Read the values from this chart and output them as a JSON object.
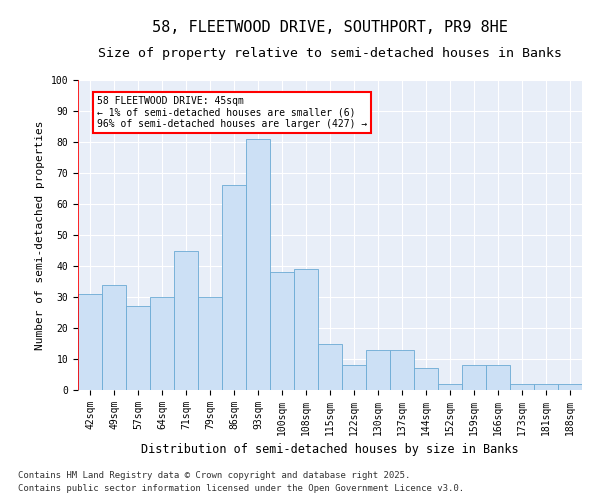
{
  "title": "58, FLEETWOOD DRIVE, SOUTHPORT, PR9 8HE",
  "subtitle": "Size of property relative to semi-detached houses in Banks",
  "xlabel": "Distribution of semi-detached houses by size in Banks",
  "ylabel": "Number of semi-detached properties",
  "categories": [
    "42sqm",
    "49sqm",
    "57sqm",
    "64sqm",
    "71sqm",
    "79sqm",
    "86sqm",
    "93sqm",
    "100sqm",
    "108sqm",
    "115sqm",
    "122sqm",
    "130sqm",
    "137sqm",
    "144sqm",
    "152sqm",
    "159sqm",
    "166sqm",
    "173sqm",
    "181sqm",
    "188sqm"
  ],
  "values": [
    31,
    34,
    27,
    30,
    45,
    30,
    66,
    81,
    38,
    39,
    15,
    8,
    13,
    13,
    7,
    2,
    8,
    8,
    2,
    2,
    2
  ],
  "bar_color": "#cce0f5",
  "bar_edge_color": "#6aaad4",
  "annotation_text": "58 FLEETWOOD DRIVE: 45sqm\n← 1% of semi-detached houses are smaller (6)\n96% of semi-detached houses are larger (427) →",
  "annotation_box_color": "white",
  "annotation_box_edge": "red",
  "ylim": [
    0,
    100
  ],
  "yticks": [
    0,
    10,
    20,
    30,
    40,
    50,
    60,
    70,
    80,
    90,
    100
  ],
  "bg_color": "#e8eef8",
  "grid_color": "white",
  "footer1": "Contains HM Land Registry data © Crown copyright and database right 2025.",
  "footer2": "Contains public sector information licensed under the Open Government Licence v3.0.",
  "title_fontsize": 11,
  "subtitle_fontsize": 9.5,
  "xlabel_fontsize": 8.5,
  "ylabel_fontsize": 8,
  "tick_fontsize": 7,
  "annot_fontsize": 7,
  "footer_fontsize": 6.5
}
